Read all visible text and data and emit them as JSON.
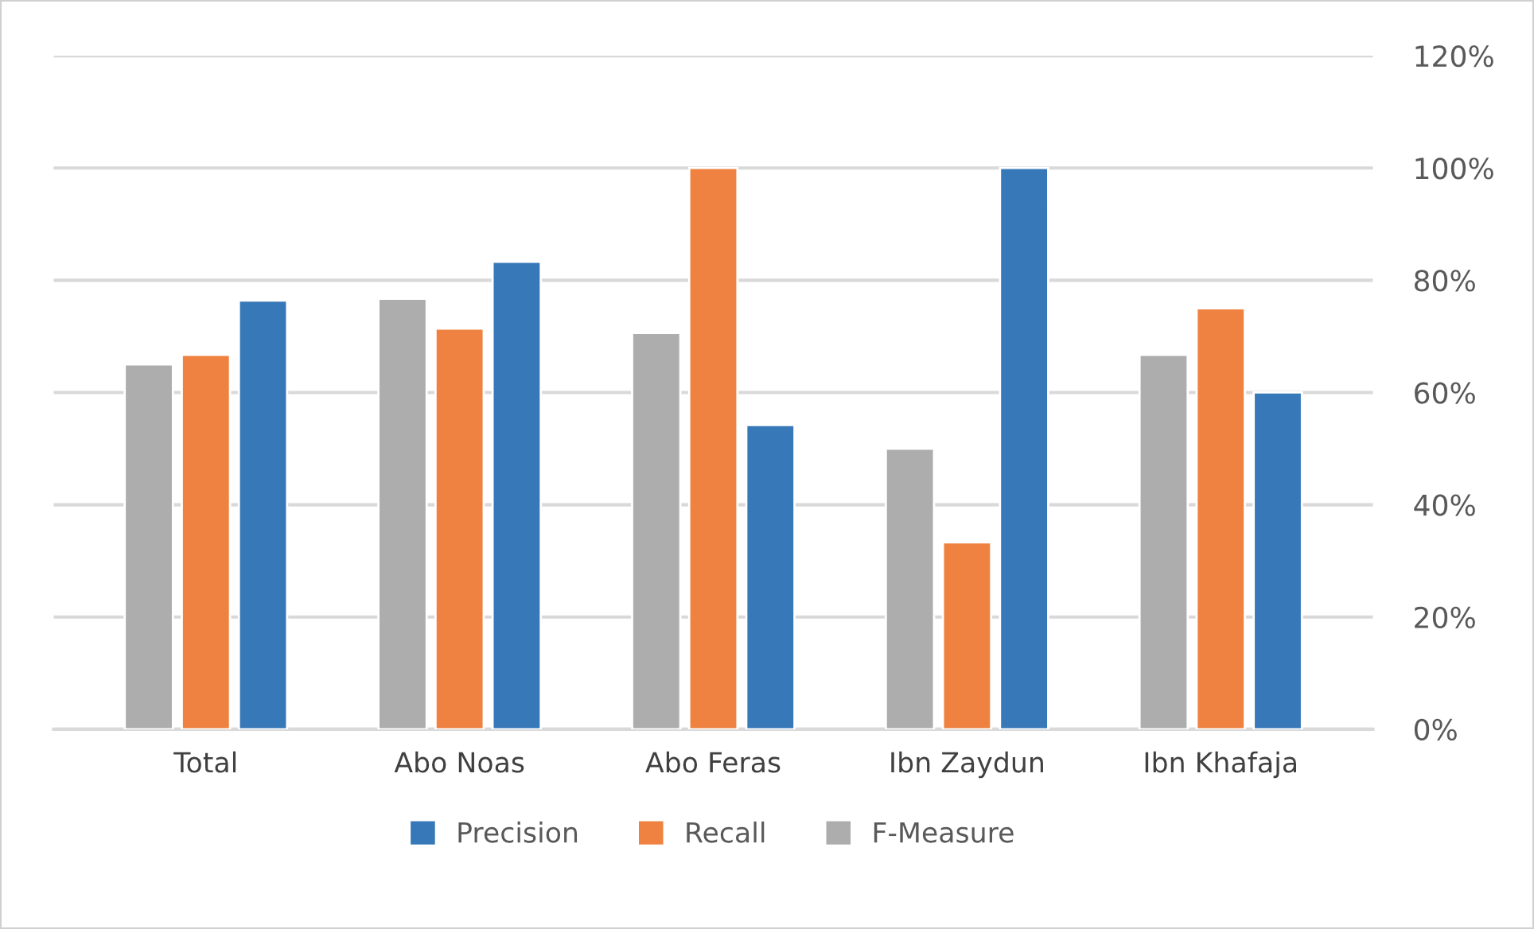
{
  "chart_data": {
    "type": "bar",
    "categories": [
      "Total",
      "Abo Noas",
      "Abo Feras",
      "Ibn Zaydun",
      "Ibn Khafaja"
    ],
    "series": [
      {
        "name": "Precision",
        "color": "#3778b8",
        "values": [
          76.4,
          83.3,
          54.2,
          100,
          60
        ]
      },
      {
        "name": "Recall",
        "color": "#ef8240",
        "values": [
          66.7,
          71.4,
          100,
          33.3,
          75
        ]
      },
      {
        "name": "F-Measure",
        "color": "#adadad",
        "values": [
          65,
          76.7,
          70.6,
          50,
          66.7
        ]
      }
    ],
    "ylim": [
      0,
      120
    ],
    "yticks": [
      {
        "value": 0,
        "label": "0%"
      },
      {
        "value": 20,
        "label": "20%"
      },
      {
        "value": 40,
        "label": "40%"
      },
      {
        "value": 60,
        "label": "60%"
      },
      {
        "value": 80,
        "label": "80%"
      },
      {
        "value": 100,
        "label": "100%"
      },
      {
        "value": 120,
        "label": "120%"
      }
    ],
    "grid": "y",
    "legend": "bottom"
  }
}
